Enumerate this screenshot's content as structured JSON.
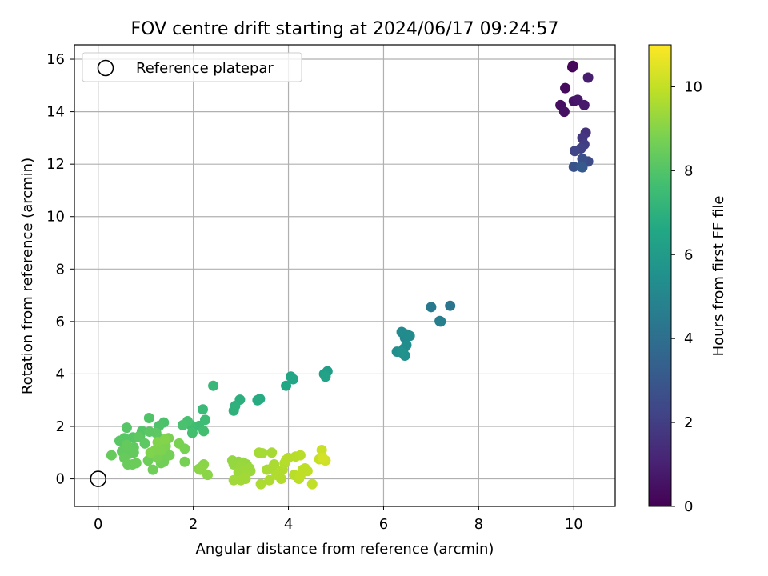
{
  "chart_data": {
    "type": "scatter",
    "title": "FOV centre drift starting at 2024/06/17 09:24:57",
    "xlabel": "Angular distance from reference (arcmin)",
    "ylabel": "Rotation from reference (arcmin)",
    "xlim": [
      -0.5,
      10.87
    ],
    "ylim": [
      -1.05,
      16.55
    ],
    "xticks": [
      0,
      2,
      4,
      6,
      8,
      10
    ],
    "yticks": [
      0,
      2,
      4,
      6,
      8,
      10,
      12,
      14,
      16
    ],
    "grid": true,
    "legend": {
      "position": "top-left",
      "entries": [
        "Reference platepar"
      ]
    },
    "reference_point": {
      "x": 0,
      "y": 0
    },
    "colorbar": {
      "label": "Hours from first FF file",
      "range": [
        0,
        11
      ],
      "ticks": [
        0,
        2,
        4,
        6,
        8,
        10
      ],
      "colormap": "viridis"
    },
    "series": [
      {
        "points": [
          [
            9.97,
            15.7,
            0.1
          ],
          [
            9.98,
            15.75,
            0.2
          ],
          [
            9.82,
            14.9,
            0.3
          ],
          [
            9.72,
            14.25,
            0.4
          ],
          [
            9.8,
            14.0,
            0.5
          ],
          [
            10.0,
            14.4,
            0.6
          ],
          [
            10.08,
            14.45,
            0.7
          ],
          [
            10.22,
            14.25,
            0.8
          ],
          [
            10.3,
            15.3,
            0.9
          ],
          [
            10.25,
            13.2,
            1.6
          ],
          [
            10.18,
            13.0,
            1.8
          ],
          [
            10.22,
            12.75,
            2.0
          ],
          [
            10.15,
            12.6,
            2.1
          ],
          [
            10.02,
            12.5,
            2.3
          ],
          [
            10.3,
            12.1,
            2.5
          ],
          [
            10.18,
            12.2,
            2.7
          ],
          [
            10.0,
            11.9,
            2.8
          ],
          [
            10.15,
            11.9,
            3.0
          ],
          [
            10.18,
            11.88,
            3.1
          ],
          [
            7.4,
            6.6,
            4.3
          ],
          [
            7.0,
            6.55,
            4.45
          ],
          [
            7.18,
            6.02,
            4.6
          ],
          [
            7.2,
            6.0,
            4.7
          ],
          [
            6.5,
            5.5,
            5.0
          ],
          [
            6.45,
            5.38,
            5.1
          ],
          [
            6.42,
            5.55,
            5.15
          ],
          [
            6.38,
            5.6,
            5.2
          ],
          [
            6.55,
            5.45,
            5.3
          ],
          [
            6.48,
            5.1,
            5.35
          ],
          [
            6.42,
            4.95,
            5.4
          ],
          [
            6.28,
            4.85,
            5.45
          ],
          [
            6.45,
            4.7,
            5.5
          ],
          [
            6.38,
            4.82,
            5.55
          ],
          [
            4.82,
            4.1,
            6.1
          ],
          [
            4.75,
            4.0,
            6.2
          ],
          [
            4.78,
            3.9,
            6.3
          ],
          [
            4.05,
            3.9,
            6.45
          ],
          [
            4.1,
            3.8,
            6.5
          ],
          [
            3.95,
            3.55,
            6.55
          ],
          [
            3.4,
            3.05,
            6.7
          ],
          [
            3.35,
            3.0,
            6.75
          ],
          [
            2.98,
            3.02,
            6.9
          ],
          [
            2.88,
            2.78,
            7.0
          ],
          [
            2.85,
            2.6,
            7.05
          ],
          [
            2.42,
            3.55,
            7.3
          ],
          [
            2.2,
            2.65,
            7.4
          ],
          [
            2.25,
            2.25,
            7.5
          ],
          [
            2.12,
            2.02,
            7.55
          ],
          [
            1.95,
            2.05,
            7.6
          ],
          [
            2.22,
            1.82,
            7.65
          ],
          [
            1.98,
            1.75,
            7.7
          ],
          [
            1.88,
            2.2,
            7.75
          ],
          [
            1.78,
            2.05,
            7.8
          ],
          [
            1.38,
            2.15,
            7.85
          ],
          [
            1.28,
            2.02,
            7.9
          ],
          [
            1.07,
            2.32,
            7.95
          ],
          [
            0.92,
            1.82,
            8.0
          ],
          [
            0.88,
            1.65,
            8.02
          ],
          [
            0.6,
            1.95,
            8.05
          ],
          [
            0.73,
            1.58,
            8.08
          ],
          [
            0.55,
            1.55,
            8.1
          ],
          [
            0.45,
            1.45,
            8.12
          ],
          [
            1.08,
            1.8,
            8.15
          ],
          [
            1.22,
            1.75,
            8.18
          ],
          [
            0.85,
            1.6,
            8.2
          ],
          [
            0.98,
            1.35,
            8.22
          ],
          [
            1.28,
            1.55,
            8.25
          ],
          [
            0.75,
            1.2,
            8.28
          ],
          [
            0.5,
            1.05,
            8.3
          ],
          [
            0.65,
            0.95,
            8.32
          ],
          [
            0.75,
            1.0,
            8.35
          ],
          [
            0.6,
            1.3,
            8.38
          ],
          [
            0.28,
            0.9,
            8.4
          ],
          [
            0.55,
            0.8,
            8.42
          ],
          [
            0.62,
            0.55,
            8.45
          ],
          [
            0.72,
            0.55,
            8.48
          ],
          [
            0.8,
            0.6,
            8.5
          ],
          [
            1.05,
            0.7,
            8.52
          ],
          [
            1.15,
            0.9,
            8.55
          ],
          [
            1.15,
            0.35,
            8.58
          ],
          [
            1.32,
            0.6,
            8.6
          ],
          [
            1.38,
            0.65,
            8.62
          ],
          [
            1.5,
            0.9,
            8.65
          ],
          [
            1.38,
            0.95,
            8.68
          ],
          [
            1.25,
            0.8,
            8.7
          ],
          [
            1.82,
            0.65,
            8.72
          ],
          [
            1.82,
            1.15,
            8.75
          ],
          [
            1.7,
            1.35,
            8.78
          ],
          [
            1.48,
            1.55,
            8.8
          ],
          [
            1.42,
            1.25,
            8.82
          ],
          [
            1.32,
            1.08,
            8.85
          ],
          [
            1.2,
            1.1,
            8.88
          ],
          [
            1.1,
            1.0,
            8.9
          ],
          [
            1.25,
            1.4,
            8.92
          ],
          [
            1.4,
            1.5,
            8.95
          ],
          [
            2.18,
            0.45,
            9.0
          ],
          [
            2.12,
            0.38,
            9.02
          ],
          [
            2.22,
            0.55,
            9.04
          ],
          [
            2.3,
            0.15,
            9.06
          ],
          [
            2.15,
            0.35,
            9.08
          ],
          [
            2.82,
            0.7,
            9.2
          ],
          [
            2.95,
            0.65,
            9.22
          ],
          [
            2.85,
            0.55,
            9.24
          ],
          [
            3.05,
            0.62,
            9.26
          ],
          [
            3.12,
            0.55,
            9.28
          ],
          [
            3.0,
            0.5,
            9.3
          ],
          [
            3.18,
            0.4,
            9.32
          ],
          [
            3.2,
            0.3,
            9.34
          ],
          [
            2.95,
            0.25,
            9.36
          ],
          [
            3.05,
            0.3,
            9.38
          ],
          [
            3.1,
            0.15,
            9.4
          ],
          [
            2.85,
            -0.05,
            9.42
          ],
          [
            3.0,
            -0.05,
            9.44
          ],
          [
            3.1,
            0.0,
            9.46
          ],
          [
            3.38,
            1.0,
            9.5
          ],
          [
            3.45,
            0.98,
            9.52
          ],
          [
            3.65,
            1.0,
            9.54
          ],
          [
            3.55,
            0.35,
            9.56
          ],
          [
            3.7,
            0.55,
            9.58
          ],
          [
            3.65,
            0.4,
            9.6
          ],
          [
            3.42,
            -0.2,
            9.62
          ],
          [
            3.6,
            -0.05,
            9.64
          ],
          [
            3.75,
            0.15,
            9.66
          ],
          [
            3.8,
            0.2,
            9.68
          ],
          [
            3.85,
            0.0,
            9.7
          ],
          [
            3.88,
            0.35,
            9.72
          ],
          [
            3.92,
            0.6,
            9.74
          ],
          [
            3.95,
            0.72,
            9.76
          ],
          [
            4.0,
            0.8,
            9.78
          ],
          [
            4.15,
            0.85,
            9.8
          ],
          [
            4.25,
            0.9,
            9.82
          ],
          [
            4.12,
            0.15,
            9.84
          ],
          [
            4.22,
            0.0,
            9.86
          ],
          [
            4.3,
            0.35,
            9.88
          ],
          [
            4.35,
            0.4,
            9.9
          ],
          [
            4.4,
            0.3,
            9.92
          ],
          [
            4.25,
            0.12,
            9.94
          ],
          [
            4.5,
            -0.2,
            9.96
          ],
          [
            4.65,
            0.75,
            10.0
          ],
          [
            4.7,
            1.1,
            10.1
          ],
          [
            4.78,
            0.7,
            10.2
          ],
          [
            4.72,
            0.8,
            10.3
          ]
        ]
      }
    ]
  }
}
